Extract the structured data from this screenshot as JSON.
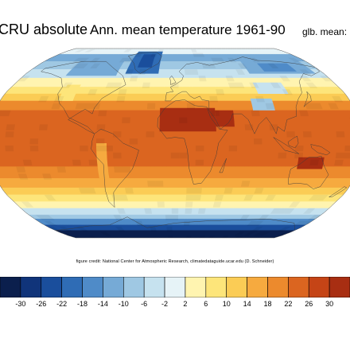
{
  "title": {
    "dataset": "CRU absolute",
    "main": "Ann. mean temperature 1961-90",
    "global_mean_label": "glb. mean:"
  },
  "credit": "figure credit: National Center for Atmospheric Research, climatedataguide.ucar.edu (D. Schneider)",
  "colorbar": {
    "bins": [
      -34,
      -30,
      -26,
      -22,
      -18,
      -14,
      -10,
      -6,
      -2,
      2,
      6,
      10,
      14,
      18,
      22,
      26,
      30,
      34
    ],
    "colors": [
      "#0b1f4d",
      "#10347a",
      "#1a4e9c",
      "#2f6cb5",
      "#4f8bc8",
      "#76aad6",
      "#9fc8e3",
      "#c6e2ef",
      "#e6f3f7",
      "#fff4b0",
      "#fde57a",
      "#fbcc55",
      "#f6aa3f",
      "#ec8a2d",
      "#db6520",
      "#c54416",
      "#a82e12"
    ],
    "tick_labels": [
      "-30",
      "-26",
      "-22",
      "-18",
      "-14",
      "-10",
      "-6",
      "-2",
      "2",
      "6",
      "10",
      "14",
      "18",
      "22",
      "26",
      "30"
    ]
  },
  "map": {
    "projection": "robinson",
    "zonal_bands": [
      {
        "lat_from": 90,
        "lat_to": 80,
        "color": "#e6f3f7"
      },
      {
        "lat_from": 80,
        "lat_to": 72,
        "color": "#76aad6"
      },
      {
        "lat_from": 72,
        "lat_to": 64,
        "color": "#9fc8e3"
      },
      {
        "lat_from": 64,
        "lat_to": 56,
        "color": "#c6e2ef"
      },
      {
        "lat_from": 56,
        "lat_to": 48,
        "color": "#fff4b0"
      },
      {
        "lat_from": 48,
        "lat_to": 42,
        "color": "#fde57a"
      },
      {
        "lat_from": 42,
        "lat_to": 36,
        "color": "#fbcc55"
      },
      {
        "lat_from": 36,
        "lat_to": 28,
        "color": "#ec8a2d"
      },
      {
        "lat_from": 28,
        "lat_to": -20,
        "color": "#db6520"
      },
      {
        "lat_from": -20,
        "lat_to": -30,
        "color": "#ec8a2d"
      },
      {
        "lat_from": -30,
        "lat_to": -38,
        "color": "#f6aa3f"
      },
      {
        "lat_from": -38,
        "lat_to": -44,
        "color": "#fbcc55"
      },
      {
        "lat_from": -44,
        "lat_to": -50,
        "color": "#fde57a"
      },
      {
        "lat_from": -50,
        "lat_to": -56,
        "color": "#fff4b0"
      },
      {
        "lat_from": -56,
        "lat_to": -62,
        "color": "#c6e2ef"
      },
      {
        "lat_from": -62,
        "lat_to": -66,
        "color": "#9fc8e3"
      },
      {
        "lat_from": -66,
        "lat_to": -72,
        "color": "#4f8bc8"
      },
      {
        "lat_from": -72,
        "lat_to": -78,
        "color": "#1a4e9c"
      },
      {
        "lat_from": -78,
        "lat_to": -90,
        "color": "#0b1f4d"
      }
    ],
    "patches": [
      {
        "region": "greenland",
        "lon": [
          -60,
          -20
        ],
        "lat": [
          60,
          84
        ],
        "color": "#2f6cb5"
      },
      {
        "region": "greenland-core",
        "lon": [
          -48,
          -30
        ],
        "lat": [
          66,
          80
        ],
        "color": "#1a4e9c"
      },
      {
        "region": "siberia",
        "lon": [
          90,
          170
        ],
        "lat": [
          60,
          74
        ],
        "color": "#76aad6"
      },
      {
        "region": "siberia-core",
        "lon": [
          110,
          150
        ],
        "lat": [
          62,
          70
        ],
        "color": "#4f8bc8"
      },
      {
        "region": "north-canada",
        "lon": [
          -130,
          -70
        ],
        "lat": [
          58,
          74
        ],
        "color": "#76aad6"
      },
      {
        "region": "tibet",
        "lon": [
          78,
          100
        ],
        "lat": [
          28,
          38
        ],
        "color": "#9fc8e3"
      },
      {
        "region": "sahara",
        "lon": [
          -15,
          40
        ],
        "lat": [
          10,
          30
        ],
        "color": "#a82e12"
      },
      {
        "region": "arabia",
        "lon": [
          40,
          58
        ],
        "lat": [
          14,
          28
        ],
        "color": "#a82e12"
      },
      {
        "region": "australia-north",
        "lon": [
          120,
          145
        ],
        "lat": [
          -22,
          -12
        ],
        "color": "#a82e12"
      },
      {
        "region": "andes",
        "lon": [
          -76,
          -66
        ],
        "lat": [
          -30,
          0
        ],
        "color": "#f6aa3f"
      },
      {
        "region": "rockies",
        "lon": [
          -120,
          -105
        ],
        "lat": [
          36,
          50
        ],
        "color": "#fde57a"
      },
      {
        "region": "mongolia",
        "lon": [
          88,
          120
        ],
        "lat": [
          42,
          52
        ],
        "color": "#c6e2ef"
      }
    ],
    "land": [
      {
        "name": "north-america",
        "pts": [
          [
            -165,
            65
          ],
          [
            -140,
            70
          ],
          [
            -125,
            72
          ],
          [
            -95,
            72
          ],
          [
            -80,
            66
          ],
          [
            -62,
            58
          ],
          [
            -55,
            50
          ],
          [
            -66,
            44
          ],
          [
            -76,
            38
          ],
          [
            -81,
            30
          ],
          [
            -82,
            25
          ],
          [
            -90,
            29
          ],
          [
            -97,
            25
          ],
          [
            -105,
            20
          ],
          [
            -95,
            16
          ],
          [
            -85,
            11
          ],
          [
            -78,
            8
          ],
          [
            -85,
            14
          ],
          [
            -105,
            22
          ],
          [
            -112,
            30
          ],
          [
            -118,
            34
          ],
          [
            -124,
            42
          ],
          [
            -124,
            48
          ],
          [
            -133,
            56
          ],
          [
            -150,
            60
          ],
          [
            -165,
            62
          ]
        ]
      },
      {
        "name": "greenland",
        "pts": [
          [
            -55,
            82
          ],
          [
            -30,
            83
          ],
          [
            -20,
            78
          ],
          [
            -22,
            70
          ],
          [
            -42,
            60
          ],
          [
            -50,
            64
          ],
          [
            -55,
            70
          ],
          [
            -70,
            78
          ]
        ]
      },
      {
        "name": "south-america",
        "pts": [
          [
            -78,
            8
          ],
          [
            -72,
            12
          ],
          [
            -60,
            8
          ],
          [
            -50,
            0
          ],
          [
            -35,
            -6
          ],
          [
            -38,
            -14
          ],
          [
            -42,
            -22
          ],
          [
            -48,
            -28
          ],
          [
            -58,
            -36
          ],
          [
            -65,
            -42
          ],
          [
            -68,
            -50
          ],
          [
            -70,
            -55
          ],
          [
            -74,
            -50
          ],
          [
            -73,
            -40
          ],
          [
            -71,
            -30
          ],
          [
            -70,
            -18
          ],
          [
            -76,
            -12
          ],
          [
            -81,
            -5
          ],
          [
            -80,
            2
          ]
        ]
      },
      {
        "name": "eurasia",
        "pts": [
          [
            -10,
            36
          ],
          [
            -9,
            43
          ],
          [
            -2,
            44
          ],
          [
            -5,
            48
          ],
          [
            0,
            50
          ],
          [
            8,
            54
          ],
          [
            10,
            58
          ],
          [
            5,
            62
          ],
          [
            15,
            69
          ],
          [
            30,
            71
          ],
          [
            45,
            68
          ],
          [
            60,
            70
          ],
          [
            80,
            73
          ],
          [
            100,
            77
          ],
          [
            115,
            73
          ],
          [
            140,
            72
          ],
          [
            160,
            70
          ],
          [
            180,
            66
          ],
          [
            178,
            62
          ],
          [
            162,
            58
          ],
          [
            155,
            60
          ],
          [
            142,
            53
          ],
          [
            135,
            43
          ],
          [
            128,
            38
          ],
          [
            122,
            31
          ],
          [
            120,
            23
          ],
          [
            110,
            20
          ],
          [
            106,
            10
          ],
          [
            100,
            14
          ],
          [
            98,
            8
          ],
          [
            94,
            16
          ],
          [
            90,
            22
          ],
          [
            82,
            16
          ],
          [
            77,
            8
          ],
          [
            72,
            20
          ],
          [
            66,
            25
          ],
          [
            57,
            25
          ],
          [
            56,
            22
          ],
          [
            52,
            17
          ],
          [
            44,
            12
          ],
          [
            40,
            20
          ],
          [
            34,
            28
          ],
          [
            35,
            36
          ],
          [
            28,
            37
          ],
          [
            26,
            40
          ],
          [
            20,
            38
          ],
          [
            16,
            40
          ],
          [
            12,
            44
          ],
          [
            8,
            44
          ],
          [
            3,
            42
          ],
          [
            -5,
            36
          ]
        ]
      },
      {
        "name": "africa",
        "pts": [
          [
            -17,
            21
          ],
          [
            -10,
            30
          ],
          [
            0,
            36
          ],
          [
            10,
            37
          ],
          [
            20,
            32
          ],
          [
            32,
            31
          ],
          [
            35,
            22
          ],
          [
            43,
            12
          ],
          [
            51,
            11
          ],
          [
            42,
            0
          ],
          [
            40,
            -10
          ],
          [
            35,
            -24
          ],
          [
            27,
            -34
          ],
          [
            19,
            -35
          ],
          [
            14,
            -22
          ],
          [
            12,
            -6
          ],
          [
            9,
            4
          ],
          [
            0,
            5
          ],
          [
            -8,
            4
          ],
          [
            -17,
            14
          ]
        ]
      },
      {
        "name": "madagascar",
        "pts": [
          [
            44,
            -25
          ],
          [
            49,
            -15
          ],
          [
            50,
            -13
          ],
          [
            47,
            -25
          ]
        ]
      },
      {
        "name": "australia",
        "pts": [
          [
            114,
            -22
          ],
          [
            122,
            -18
          ],
          [
            130,
            -12
          ],
          [
            137,
            -12
          ],
          [
            142,
            -11
          ],
          [
            146,
            -19
          ],
          [
            153,
            -27
          ],
          [
            150,
            -37
          ],
          [
            144,
            -39
          ],
          [
            135,
            -35
          ],
          [
            124,
            -34
          ],
          [
            116,
            -35
          ],
          [
            114,
            -30
          ]
        ]
      },
      {
        "name": "antarctica-coast",
        "pts": [
          [
            -180,
            -78
          ],
          [
            -150,
            -76
          ],
          [
            -120,
            -73
          ],
          [
            -90,
            -72
          ],
          [
            -60,
            -64
          ],
          [
            -40,
            -75
          ],
          [
            0,
            -70
          ],
          [
            40,
            -68
          ],
          [
            80,
            -67
          ],
          [
            120,
            -66
          ],
          [
            160,
            -70
          ],
          [
            180,
            -78
          ]
        ]
      },
      {
        "name": "british-isles",
        "pts": [
          [
            -5,
            50
          ],
          [
            1,
            52
          ],
          [
            -2,
            56
          ],
          [
            -4,
            58
          ],
          [
            -6,
            56
          ],
          [
            -5,
            53
          ]
        ]
      },
      {
        "name": "japan",
        "pts": [
          [
            130,
            31
          ],
          [
            135,
            34
          ],
          [
            140,
            36
          ],
          [
            142,
            40
          ],
          [
            141,
            44
          ],
          [
            139,
            40
          ],
          [
            133,
            34
          ]
        ]
      },
      {
        "name": "new-zealand",
        "pts": [
          [
            167,
            -46
          ],
          [
            172,
            -40
          ],
          [
            175,
            -37
          ],
          [
            178,
            -38
          ],
          [
            174,
            -42
          ],
          [
            170,
            -46
          ]
        ]
      },
      {
        "name": "indonesia",
        "pts": [
          [
            95,
            5
          ],
          [
            106,
            -6
          ],
          [
            115,
            -8
          ],
          [
            120,
            -9
          ],
          [
            110,
            -3
          ],
          [
            101,
            2
          ]
        ]
      },
      {
        "name": "borneo",
        "pts": [
          [
            109,
            1
          ],
          [
            114,
            4
          ],
          [
            118,
            6
          ],
          [
            119,
            0
          ],
          [
            116,
            -4
          ],
          [
            110,
            -2
          ]
        ]
      },
      {
        "name": "new-guinea",
        "pts": [
          [
            131,
            -1
          ],
          [
            141,
            -3
          ],
          [
            150,
            -8
          ],
          [
            147,
            -10
          ],
          [
            138,
            -8
          ],
          [
            132,
            -4
          ]
        ]
      }
    ]
  }
}
